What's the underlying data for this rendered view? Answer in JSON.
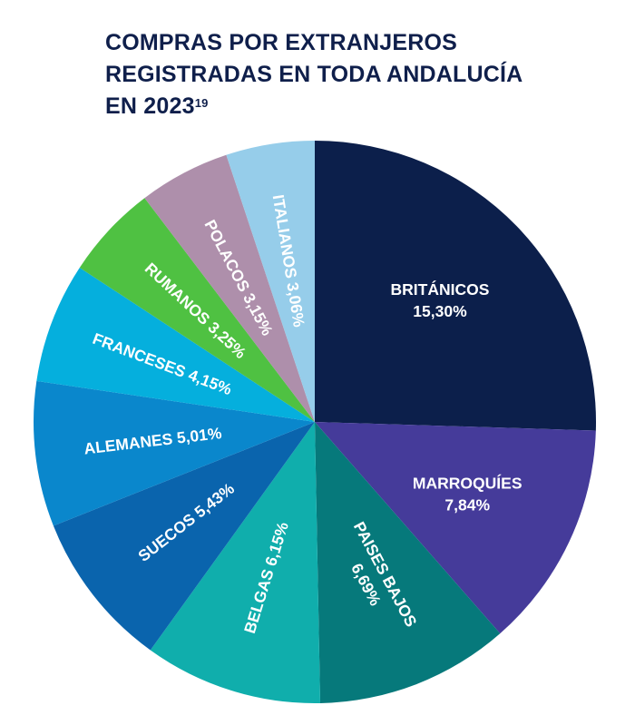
{
  "chart_data": {
    "type": "pie",
    "title": "COMPRAS POR EXTRANJEROS REGISTRADAS EN TODA ANDALUCÍA EN 2023",
    "title_lines": [
      "COMPRAS POR EXTRANJEROS",
      "REGISTRADAS EN TODA ANDALUCÍA",
      "EN 2023"
    ],
    "title_footnote": "19",
    "start": "top",
    "direction": "clockwise",
    "slices": [
      {
        "label": "BRITÁNICOS",
        "value": 15.3,
        "display": "15,30%",
        "color": "#0c1f4b"
      },
      {
        "label": "MARROQUÍES",
        "value": 7.84,
        "display": "7,84%",
        "color": "#453b9a"
      },
      {
        "label": "PAISES BAJOS",
        "value": 6.69,
        "display": "6,69%",
        "color": "#06797b"
      },
      {
        "label": "BELGAS",
        "value": 6.15,
        "display": "6,15%",
        "color": "#10aeac"
      },
      {
        "label": "SUECOS",
        "value": 5.43,
        "display": "5,43%",
        "color": "#0a64ad"
      },
      {
        "label": "ALEMANES",
        "value": 5.01,
        "display": "5,01%",
        "color": "#0a87cc"
      },
      {
        "label": "FRANCESES",
        "value": 4.15,
        "display": "4,15%",
        "color": "#05afdd"
      },
      {
        "label": "RUMANOS",
        "value": 3.25,
        "display": "3,25%",
        "color": "#4fc142"
      },
      {
        "label": "POLACOS",
        "value": 3.15,
        "display": "3,15%",
        "color": "#ae8fab"
      },
      {
        "label": "ITALIANOS",
        "value": 3.06,
        "display": "3,06%",
        "color": "#96cdea"
      }
    ]
  }
}
